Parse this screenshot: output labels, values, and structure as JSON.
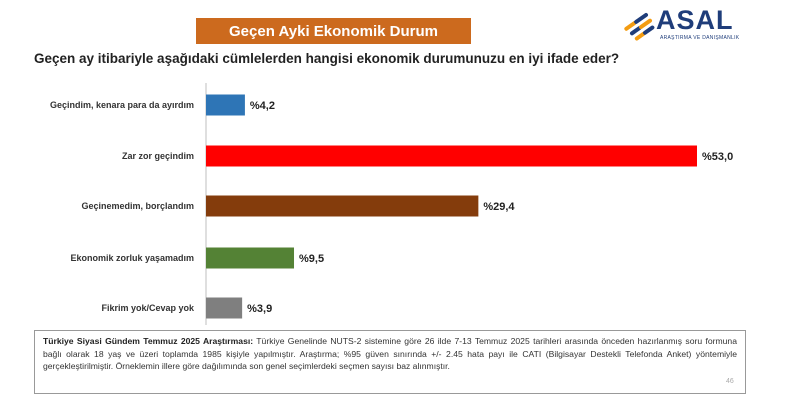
{
  "header": {
    "banner_title": "Geçen Ayki Ekonomik Durum",
    "banner_color": "#cc6a1e",
    "logo_text": "ASAL",
    "logo_tagline": "ARAŞTIRMA VE DANIŞMANLIK"
  },
  "question": "Geçen ay itibariyle aşağıdaki cümlelerden hangisi ekonomik durumunuzu en iyi ifade eder?",
  "chart_data": {
    "type": "bar",
    "orientation": "horizontal",
    "categories": [
      "Geçindim, kenara para da ayırdım",
      "Zar zor geçindim",
      "Geçinemedim, borçlandım",
      "Ekonomik zorluk yaşamadım",
      "Fikrim yok/Cevap yok"
    ],
    "values": [
      4.2,
      53.0,
      29.4,
      9.5,
      3.9
    ],
    "value_labels": [
      "%4,2",
      "%53,0",
      "%29,4",
      "%9,5",
      "%3,9"
    ],
    "colors": [
      "#2e75b6",
      "#ff0000",
      "#843c0c",
      "#548235",
      "#7f7f7f"
    ],
    "grid": false,
    "legend": "none"
  },
  "footnote": {
    "title": "Türkiye Siyasi Gündem Temmuz 2025 Araştırması:",
    "text": "Türkiye Genelinde NUTS-2 sistemine göre 26 ilde 7-13 Temmuz 2025 tarihleri arasında önceden hazırlanmış soru formuna bağlı olarak 18 yaş ve üzeri toplamda 1985 kişiyle yapılmıştır. Araştırma; %95 güven sınırında +/- 2.45 hata payı ile CATI (Bilgisayar Destekli Telefonda Anket) yöntemiyle gerçekleştirilmiştir. Örneklemin illere göre dağılımında son genel seçimlerdeki seçmen sayısı baz alınmıştır."
  },
  "page_number": "46"
}
